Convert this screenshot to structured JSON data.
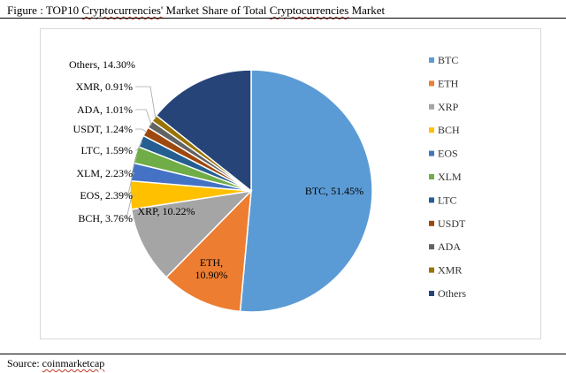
{
  "figure": {
    "title_prefix": "Figure : TOP10 ",
    "title_word": "Cryptocurrencies'",
    "title_mid": " Market Share of Total ",
    "title_word2": "Cryptocurrencies",
    "title_suffix": " Market"
  },
  "source": {
    "prefix": "Source: ",
    "name": "coinmarketcap"
  },
  "chart_data": {
    "type": "pie",
    "legend_position": "right",
    "slices": [
      {
        "name": "BTC",
        "value": 51.45,
        "label": "BTC, 51.45%",
        "color": "#5b9bd5"
      },
      {
        "name": "ETH",
        "value": 10.9,
        "label": "ETH, 10.90%",
        "color": "#ed7d31"
      },
      {
        "name": "XRP",
        "value": 10.22,
        "label": "XRP, 10.22%",
        "color": "#a5a5a5"
      },
      {
        "name": "BCH",
        "value": 3.76,
        "label": "BCH, 3.76%",
        "color": "#ffc000"
      },
      {
        "name": "EOS",
        "value": 2.39,
        "label": "EOS, 2.39%",
        "color": "#4472c4"
      },
      {
        "name": "XLM",
        "value": 2.23,
        "label": "XLM, 2.23%",
        "color": "#70ad47"
      },
      {
        "name": "LTC",
        "value": 1.59,
        "label": "LTC, 1.59%",
        "color": "#255e91"
      },
      {
        "name": "USDT",
        "value": 1.24,
        "label": "USDT, 1.24%",
        "color": "#9e480e"
      },
      {
        "name": "ADA",
        "value": 1.01,
        "label": "ADA, 1.01%",
        "color": "#636363"
      },
      {
        "name": "XMR",
        "value": 0.91,
        "label": "XMR, 0.91%",
        "color": "#997300"
      },
      {
        "name": "Others",
        "value": 14.3,
        "label": "Others, 14.30%",
        "color": "#264478"
      }
    ]
  }
}
